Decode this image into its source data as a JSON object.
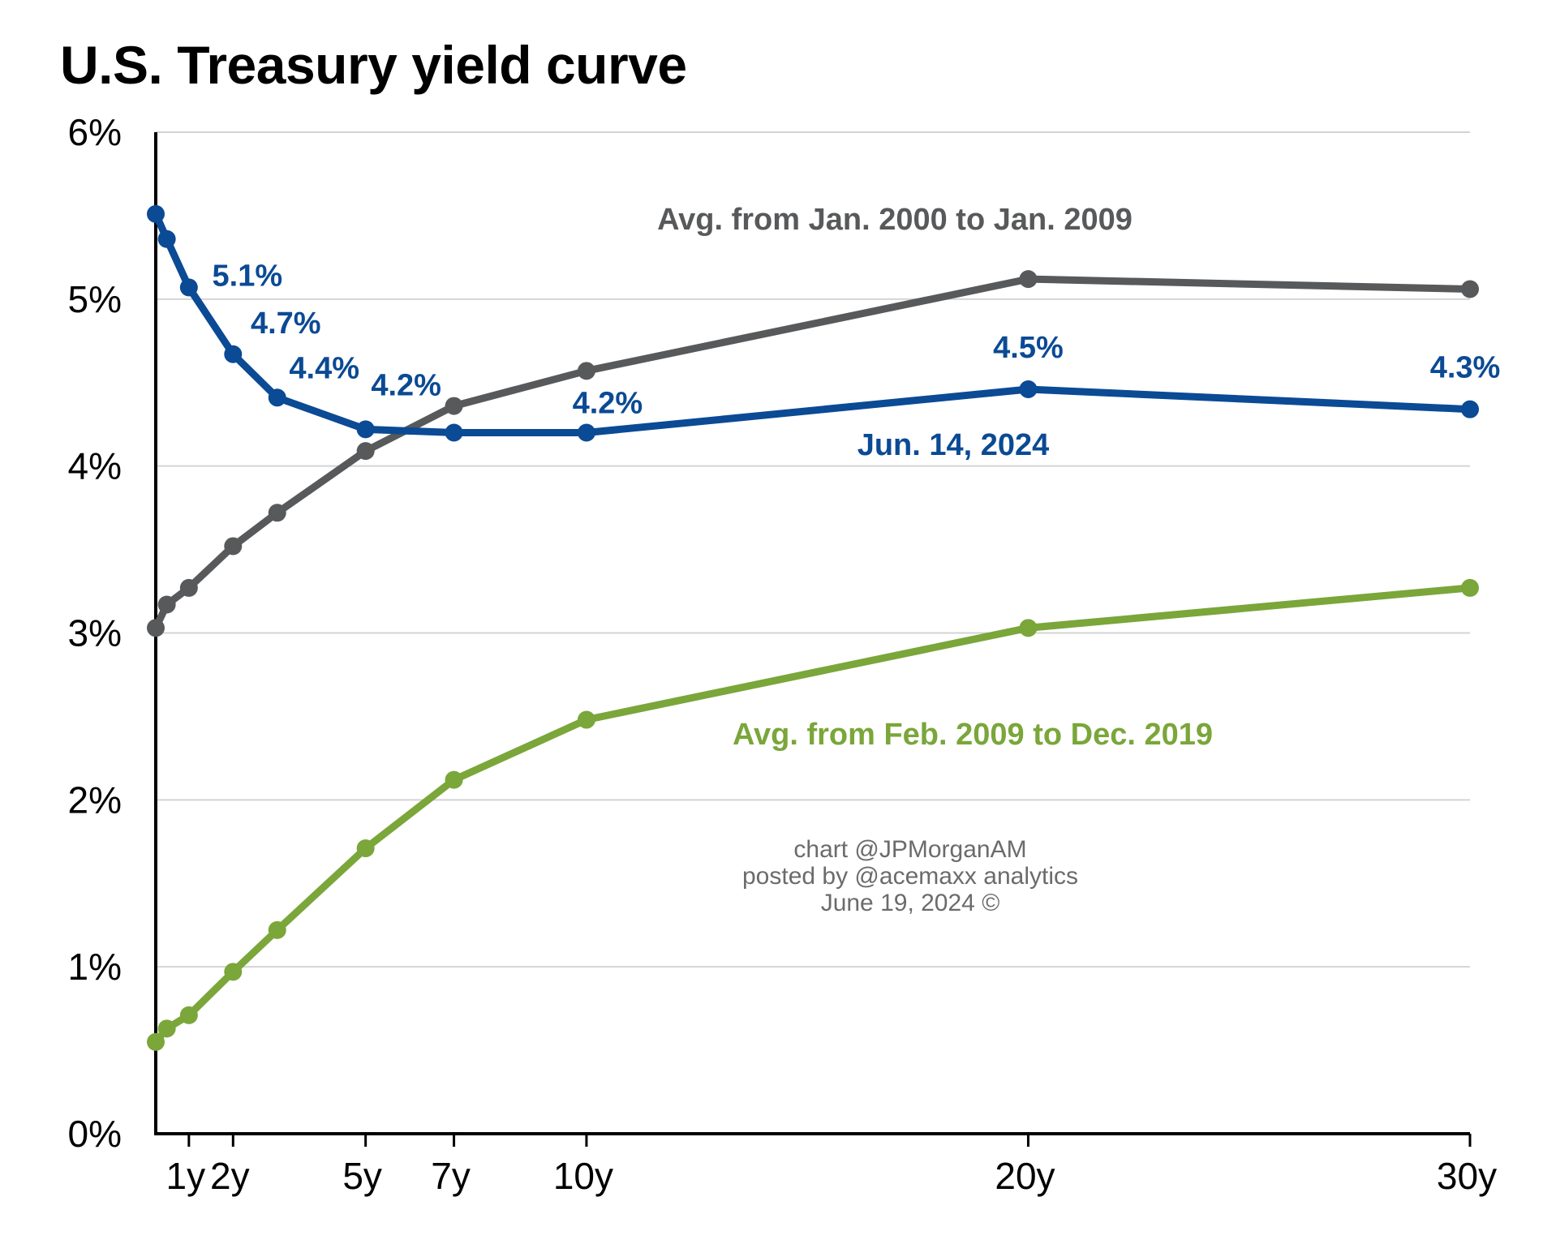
{
  "chart_data": {
    "type": "line",
    "title": "U.S. Treasury yield curve",
    "xlabel": "",
    "ylabel": "",
    "ylim": [
      0,
      6
    ],
    "grid": true,
    "y_ticks": [
      {
        "value": 0,
        "label": "0%"
      },
      {
        "value": 1,
        "label": "1%"
      },
      {
        "value": 2,
        "label": "2%"
      },
      {
        "value": 3,
        "label": "3%"
      },
      {
        "value": 4,
        "label": "4%"
      },
      {
        "value": 5,
        "label": "5%"
      },
      {
        "value": 6,
        "label": "6%"
      }
    ],
    "x_ticks": [
      {
        "value": 1,
        "label": "1y"
      },
      {
        "value": 2,
        "label": "2y"
      },
      {
        "value": 5,
        "label": "5y"
      },
      {
        "value": 7,
        "label": "7y"
      },
      {
        "value": 10,
        "label": "10y"
      },
      {
        "value": 20,
        "label": "20y"
      },
      {
        "value": 30,
        "label": "30y"
      }
    ],
    "series": [
      {
        "name": "Jun. 14, 2024",
        "color": "#0b4a94",
        "x": [
          0.25,
          0.5,
          1,
          2,
          3,
          5,
          7,
          10,
          20,
          30
        ],
        "values": [
          5.51,
          5.36,
          5.07,
          4.67,
          4.41,
          4.22,
          4.2,
          4.2,
          4.46,
          4.34
        ],
        "data_labels": [
          {
            "x": 1,
            "text": "5.1%"
          },
          {
            "x": 2,
            "text": "4.7%"
          },
          {
            "x": 3,
            "text": "4.4%"
          },
          {
            "x": 5,
            "text": "4.2%"
          },
          {
            "x": 10,
            "text": "4.2%"
          },
          {
            "x": 20,
            "text": "4.5%"
          },
          {
            "x": 30,
            "text": "4.3%"
          }
        ]
      },
      {
        "name": "Avg. from Jan. 2000 to Jan. 2009",
        "color": "#58595b",
        "x": [
          0.25,
          0.5,
          1,
          2,
          3,
          5,
          7,
          10,
          20,
          30
        ],
        "values": [
          3.03,
          3.17,
          3.27,
          3.52,
          3.72,
          4.09,
          4.36,
          4.57,
          5.12,
          5.06
        ],
        "data_labels": []
      },
      {
        "name": "Avg. from Feb. 2009 to Dec. 2019",
        "color": "#7aa63a",
        "x": [
          0.25,
          0.5,
          1,
          2,
          3,
          5,
          7,
          10,
          20,
          30
        ],
        "values": [
          0.55,
          0.63,
          0.71,
          0.97,
          1.22,
          1.71,
          2.12,
          2.48,
          3.03,
          3.27
        ],
        "data_labels": []
      }
    ]
  },
  "credit": {
    "line1": "chart @JPMorganAM",
    "line2": "posted by @acemaxx analytics",
    "line3": "June 19, 2024 ©"
  }
}
